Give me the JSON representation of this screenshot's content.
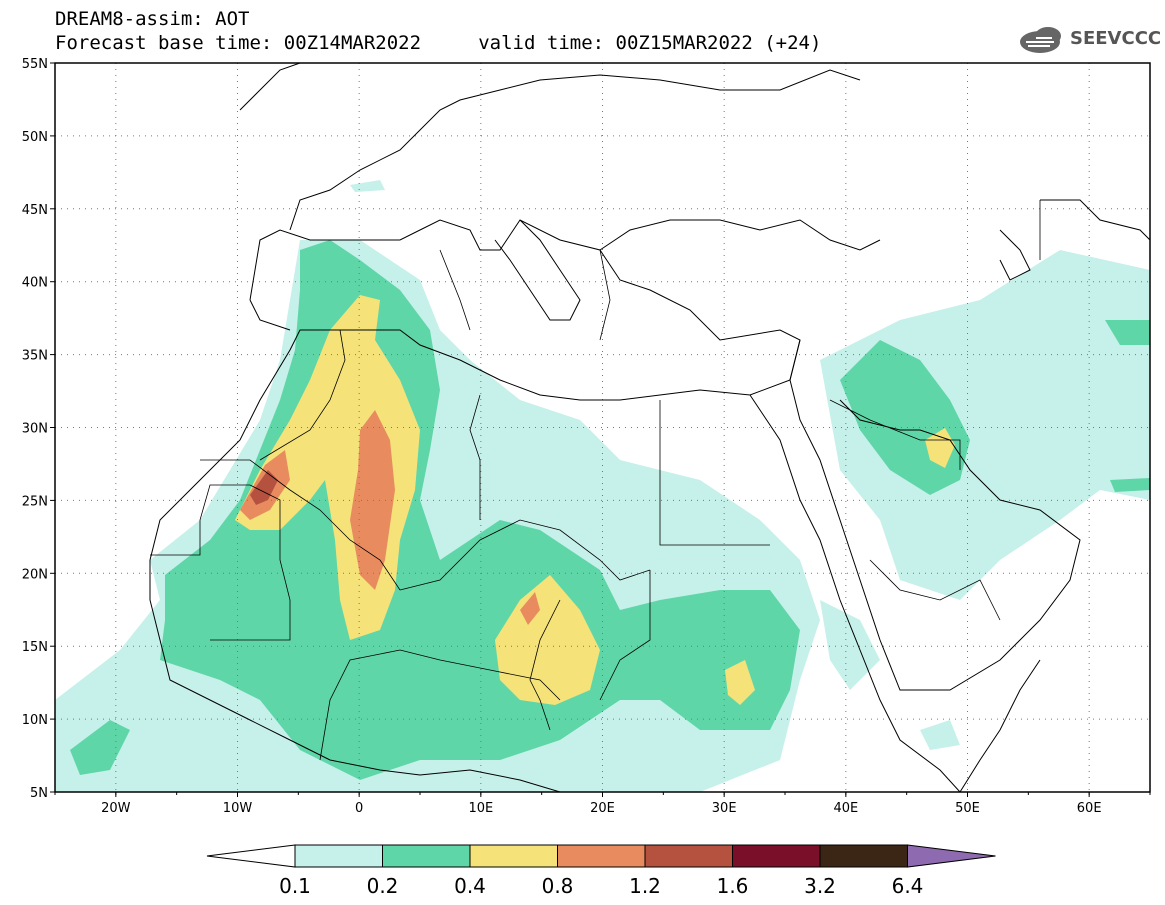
{
  "header": {
    "title_line1": "DREAM8-assim: AOT",
    "title_line2": "Forecast base time: 00Z14MAR2022     valid time: 00Z15MAR2022 (+24)",
    "logo_text": "SEEVCCC"
  },
  "map": {
    "projection": "lat-lon",
    "lon_range": [
      -25,
      65
    ],
    "lat_range": [
      5,
      55
    ],
    "lat_labels": [
      "55N",
      "50N",
      "45N",
      "40N",
      "35N",
      "30N",
      "25N",
      "20N",
      "15N",
      "10N",
      "5N"
    ],
    "lon_labels": [
      "20W",
      "10W",
      "0",
      "10E",
      "20E",
      "30E",
      "40E",
      "50E",
      "60E"
    ],
    "grid": true
  },
  "colorbar": {
    "labels": [
      "0.1",
      "0.2",
      "0.4",
      "0.8",
      "1.2",
      "1.6",
      "3.2",
      "6.4"
    ],
    "colors": [
      "#ffffff",
      "#c6f0ea",
      "#5fd6a8",
      "#f5e37a",
      "#e88c60",
      "#b5523f",
      "#7a0f2a",
      "#3b2616",
      "#8e6ab0"
    ]
  }
}
